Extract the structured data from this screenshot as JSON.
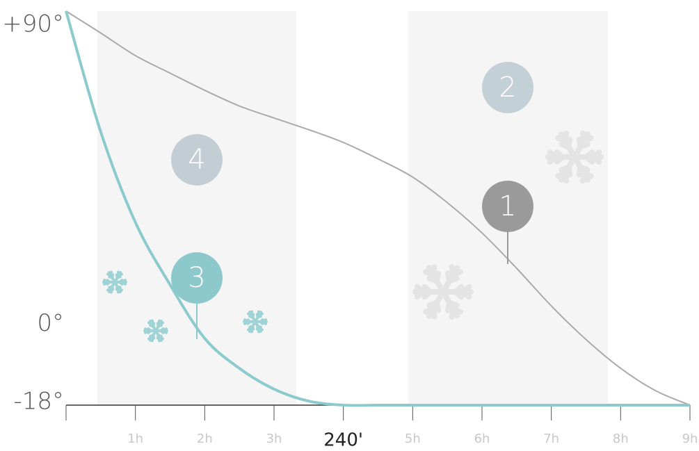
{
  "chart_data": {
    "type": "line",
    "x": [
      0,
      0.5,
      1,
      1.5,
      2,
      2.5,
      3,
      3.5,
      4,
      4.5,
      5,
      5.5,
      6,
      6.5,
      7,
      7.5,
      8,
      8.5,
      9
    ],
    "series": [
      {
        "color": "#aaaaaa",
        "values": [
          90,
          84,
          77.8,
          73,
          68.3,
          64,
          60.7,
          57.5,
          54,
          49.5,
          44.5,
          37.5,
          29.2,
          19.5,
          9.2,
          0,
          -7.9,
          -14,
          -18
        ]
      },
      {
        "color": "#8ccbcd",
        "values": [
          90,
          56.9,
          32.1,
          15,
          0.3,
          -7.9,
          -13.6,
          -16.9,
          -18,
          -18,
          -18,
          -18,
          -18,
          -18,
          -18,
          -18,
          -18,
          -18,
          -18
        ]
      }
    ],
    "xlim": [
      0,
      9
    ],
    "ylim": [
      -18,
      90
    ],
    "xticks": [
      {
        "value": 0,
        "label": null
      },
      {
        "value": 1,
        "label": "1h"
      },
      {
        "value": 2,
        "label": "2h"
      },
      {
        "value": 3,
        "label": "3h"
      },
      {
        "value": 4,
        "label": "240'"
      },
      {
        "value": 5,
        "label": "5h"
      },
      {
        "value": 6,
        "label": "6h"
      },
      {
        "value": 7,
        "label": "7h"
      },
      {
        "value": 8,
        "label": "8h"
      },
      {
        "value": 9,
        "label": "9h"
      }
    ],
    "yticks": [
      {
        "value": 90,
        "label": "+90°"
      },
      {
        "value": 0,
        "label": "0°"
      },
      {
        "value": -18,
        "label": "-18°"
      }
    ],
    "annotations": [
      {
        "label": "1",
        "color": "#9a9a9a"
      },
      {
        "label": "2",
        "color": "#c3d0d6"
      },
      {
        "label": "3",
        "color": "#8cc8cc"
      },
      {
        "label": "4",
        "color": "#c3ced4"
      }
    ]
  }
}
